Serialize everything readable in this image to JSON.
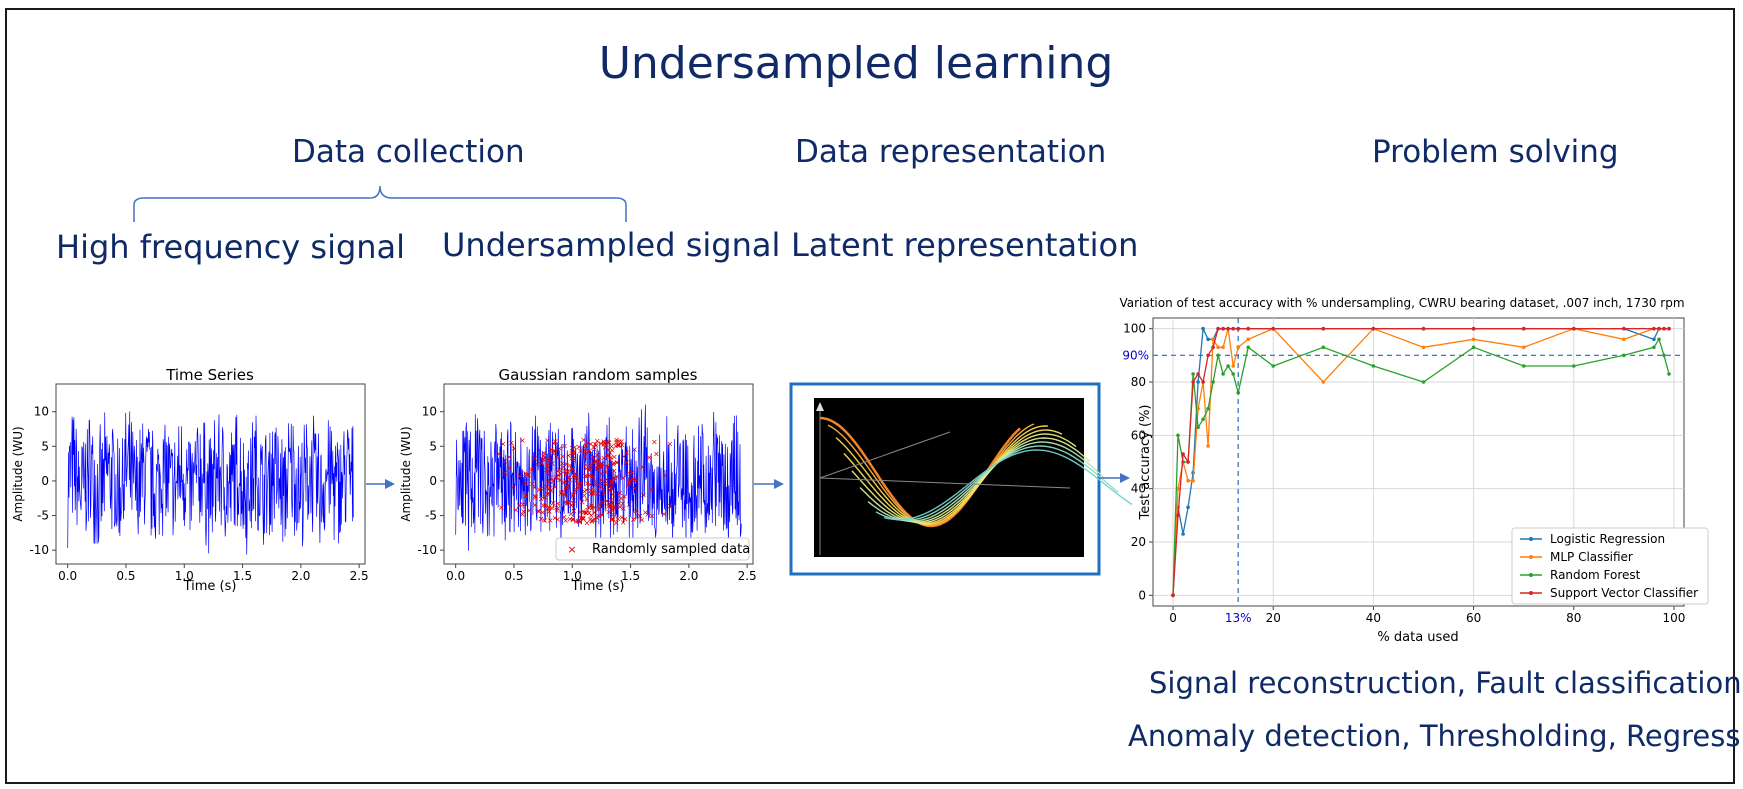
{
  "title": "Undersampled learning",
  "sections": {
    "collection": "Data collection",
    "representation": "Data representation",
    "solving": "Problem solving"
  },
  "labels": {
    "high_freq": "High frequency signal",
    "undersampled": "Undersampled signal",
    "latent": "Latent representation"
  },
  "applications": {
    "line1": "Signal reconstruction, Fault classification,",
    "line2": "Anomaly detection, Thresholding, Regression"
  },
  "colors": {
    "navy": "#0f2a66",
    "arrow": "#4472c4",
    "signal": "#0000ff",
    "samples": "#e00000"
  },
  "timeseries": {
    "title": "Time Series",
    "xlabel": "Time (s)",
    "ylabel": "Amplitude (WU)",
    "xticks": [
      "0.0",
      "0.5",
      "1.0",
      "1.5",
      "2.0",
      "2.5"
    ],
    "yticks": [
      "10",
      "5",
      "0",
      "-5",
      "-10"
    ],
    "xlim": [
      -0.1,
      2.55
    ],
    "ylim": [
      -12,
      14
    ]
  },
  "samples_plot": {
    "title": "Gaussian random samples",
    "xlabel": "Time (s)",
    "ylabel": "Amplitude (WU)",
    "xticks": [
      "0.0",
      "0.5",
      "1.0",
      "1.5",
      "2.0",
      "2.5"
    ],
    "yticks": [
      "10",
      "5",
      "0",
      "-5",
      "-10"
    ],
    "legend": "Randomly sampled data",
    "xlim": [
      -0.1,
      2.55
    ],
    "ylim": [
      -12,
      14
    ]
  },
  "latent_figure": {
    "icon": "3d-surface-plot"
  },
  "chart_data": {
    "type": "line",
    "title": "Variation of test accuracy with % undersampling, CWRU bearing dataset, .007 inch, 1730 rpm",
    "xlabel": "% data used",
    "ylabel": "Test accuracy (%)",
    "xlim": [
      -4,
      102
    ],
    "ylim": [
      -4,
      104
    ],
    "xticks": [
      0,
      20,
      40,
      60,
      80,
      100
    ],
    "yticks": [
      0,
      20,
      40,
      60,
      80,
      100
    ],
    "grid": true,
    "legend_position": "bottom-right",
    "annotations": {
      "hline": 90,
      "hline_label": "90%",
      "vline": 13,
      "vline_label": "13%"
    },
    "x": [
      0,
      1,
      2,
      3,
      4,
      5,
      6,
      7,
      8,
      9,
      10,
      11,
      12,
      13,
      15,
      20,
      30,
      40,
      50,
      60,
      70,
      80,
      90,
      96,
      97,
      98,
      99
    ],
    "series": [
      {
        "name": "Logistic Regression",
        "color": "#1f77b4",
        "values": [
          0,
          33,
          23,
          33,
          46,
          80,
          100,
          96,
          96,
          100,
          100,
          100,
          100,
          100,
          100,
          100,
          100,
          100,
          100,
          100,
          100,
          100,
          100,
          96,
          100,
          100,
          100
        ]
      },
      {
        "name": "MLP Classifier",
        "color": "#ff7f0e",
        "values": [
          0,
          40,
          50,
          43,
          43,
          70,
          80,
          56,
          96,
          93,
          93,
          100,
          86,
          93,
          96,
          100,
          80,
          100,
          93,
          96,
          93,
          100,
          96,
          100,
          100,
          100,
          100
        ]
      },
      {
        "name": "Random Forest",
        "color": "#2ca02c",
        "values": [
          0,
          60,
          50,
          50,
          83,
          63,
          66,
          70,
          80,
          90,
          83,
          86,
          83,
          76,
          93,
          86,
          93,
          86,
          80,
          93,
          86,
          86,
          90,
          93,
          96,
          90,
          83
        ]
      },
      {
        "name": "Support Vector Classifier",
        "color": "#d62728",
        "values": [
          0,
          30,
          53,
          50,
          80,
          83,
          80,
          90,
          93,
          100,
          100,
          100,
          100,
          100,
          100,
          100,
          100,
          100,
          100,
          100,
          100,
          100,
          100,
          100,
          100,
          100,
          100
        ]
      }
    ]
  }
}
